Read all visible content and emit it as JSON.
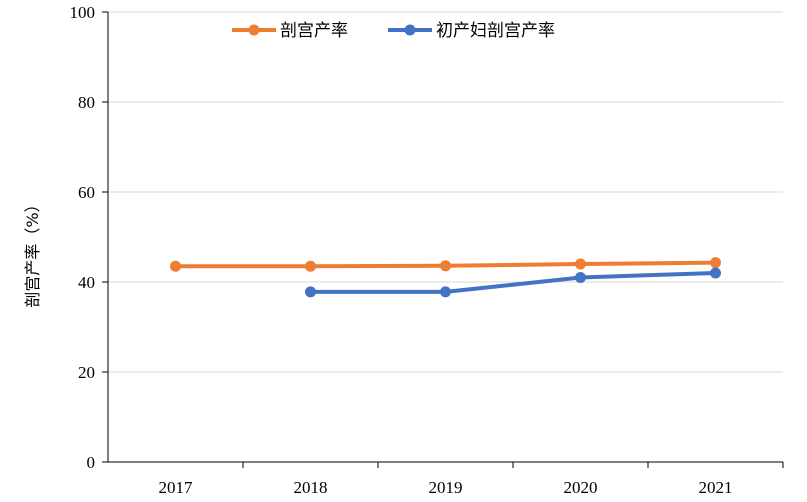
{
  "chart_data": {
    "type": "line",
    "title": "",
    "xlabel": "",
    "ylabel": "剖宫产率（%）",
    "categories": [
      "2017",
      "2018",
      "2019",
      "2020",
      "2021"
    ],
    "ylim": [
      0,
      100
    ],
    "yticks": [
      0,
      20,
      40,
      60,
      80,
      100
    ],
    "grid": true,
    "legend": "top-center",
    "series": [
      {
        "name": "剖宫产率",
        "color": "#ED7D31",
        "values": [
          43.5,
          43.5,
          43.6,
          44.0,
          44.3
        ]
      },
      {
        "name": "初产妇剖宫产率",
        "color": "#4472C4",
        "values": [
          null,
          37.8,
          37.8,
          41.0,
          42.0
        ]
      }
    ]
  }
}
